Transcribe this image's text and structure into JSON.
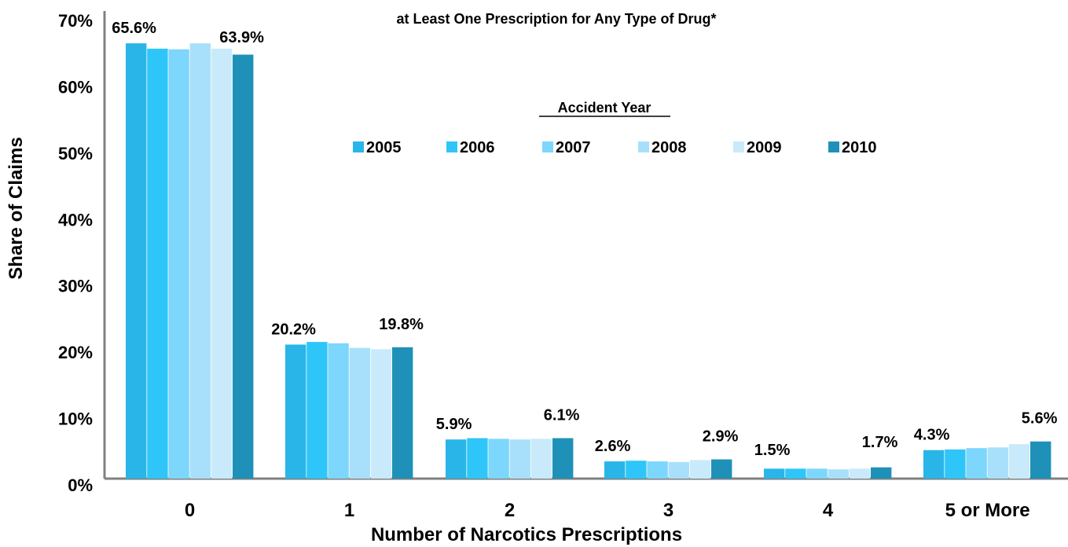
{
  "chart_data": {
    "type": "bar",
    "title": "at Least One Prescription for Any Type of Drug*",
    "xlabel": "Number of Narcotics Prescriptions",
    "ylabel": "Share of Claims",
    "ylim": [
      0,
      70
    ],
    "yticks": [
      "0%",
      "10%",
      "20%",
      "30%",
      "40%",
      "50%",
      "60%",
      "70%"
    ],
    "categories": [
      "0",
      "1",
      "2",
      "3",
      "4",
      "5 or More"
    ],
    "legend_title": "Accident Year",
    "series": [
      {
        "name": "2005",
        "color": "#29B5E8",
        "values": [
          65.6,
          20.2,
          5.9,
          2.6,
          1.5,
          4.3
        ]
      },
      {
        "name": "2006",
        "color": "#2EC6F9",
        "values": [
          64.8,
          20.6,
          6.1,
          2.7,
          1.5,
          4.4
        ]
      },
      {
        "name": "2007",
        "color": "#7DD6FB",
        "values": [
          64.7,
          20.4,
          6.0,
          2.6,
          1.5,
          4.6
        ]
      },
      {
        "name": "2008",
        "color": "#A8E0FB",
        "values": [
          65.6,
          19.7,
          5.9,
          2.5,
          1.4,
          4.7
        ]
      },
      {
        "name": "2009",
        "color": "#C8EAFB",
        "values": [
          64.8,
          19.5,
          6.0,
          2.8,
          1.5,
          5.2
        ]
      },
      {
        "name": "2010",
        "color": "#1F91B8",
        "values": [
          63.9,
          19.8,
          6.1,
          2.9,
          1.7,
          5.6
        ]
      }
    ],
    "data_labels": [
      {
        "category": 0,
        "first": "65.6%",
        "last": "63.9%"
      },
      {
        "category": 1,
        "first": "20.2%",
        "last": "19.8%"
      },
      {
        "category": 2,
        "first": "5.9%",
        "last": "6.1%"
      },
      {
        "category": 3,
        "first": "2.6%",
        "last": "2.9%"
      },
      {
        "category": 4,
        "first": "1.5%",
        "last": "1.7%"
      },
      {
        "category": 5,
        "first": "4.3%",
        "last": "5.6%"
      }
    ],
    "axis_color": "#808080"
  }
}
